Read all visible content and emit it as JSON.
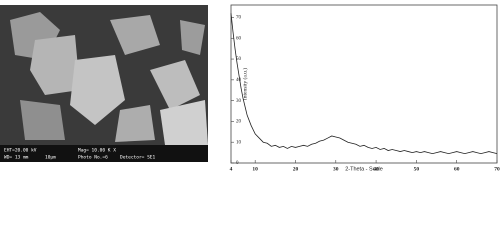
{
  "sem_image": {
    "info_bar": [
      "EHT=20.00 kV",
      "WD= 13 mm",
      "Mag= 10.00 K X",
      "10μm",
      "Photo No.=6",
      "Detector= SE1"
    ]
  },
  "chart_data": {
    "type": "line",
    "x_label": "2-Theta - Scale",
    "y_label": "Intensity (a.u.)",
    "x": [
      4,
      4.5,
      5,
      5.5,
      6,
      6.5,
      7,
      7.5,
      8,
      9,
      10,
      11,
      12,
      13,
      14,
      15,
      16,
      17,
      18,
      19,
      20,
      21,
      22,
      23,
      24,
      25,
      26,
      27,
      28,
      29,
      30,
      31,
      32,
      33,
      34,
      35,
      36,
      37,
      38,
      39,
      40,
      41,
      42,
      43,
      44,
      45,
      46,
      47,
      48,
      49,
      50,
      51,
      52,
      53,
      54,
      55,
      56,
      57,
      58,
      59,
      60,
      61,
      62,
      63,
      64,
      65,
      66,
      67,
      68,
      69,
      70
    ],
    "series": [
      {
        "color": "#222222",
        "values": [
          72,
          63,
          55,
          48,
          42,
          36,
          31,
          27,
          23,
          18,
          14,
          12,
          10,
          9.5,
          8,
          8.5,
          7.5,
          8,
          7,
          8,
          7.5,
          8,
          8.5,
          8,
          9,
          9.5,
          10.5,
          11,
          12,
          13,
          12.5,
          12,
          11,
          10,
          9.5,
          9,
          8,
          8.5,
          7.5,
          7,
          7.5,
          6.5,
          7,
          6,
          6.5,
          6,
          5.5,
          6,
          5.5,
          5,
          5.5,
          5,
          5.5,
          5,
          4.5,
          5,
          5.5,
          5,
          4.5,
          5,
          5.5,
          5,
          4.5,
          5,
          5.5,
          5,
          4.5,
          5,
          5.5,
          5,
          4.5
        ]
      }
    ],
    "xlim": [
      4,
      70
    ],
    "xticks": [
      4,
      10,
      20,
      30,
      40,
      50,
      60,
      70
    ],
    "ylim": [
      0,
      76
    ],
    "yticks": [
      0,
      10,
      20,
      30,
      40,
      50,
      60,
      70
    ]
  }
}
